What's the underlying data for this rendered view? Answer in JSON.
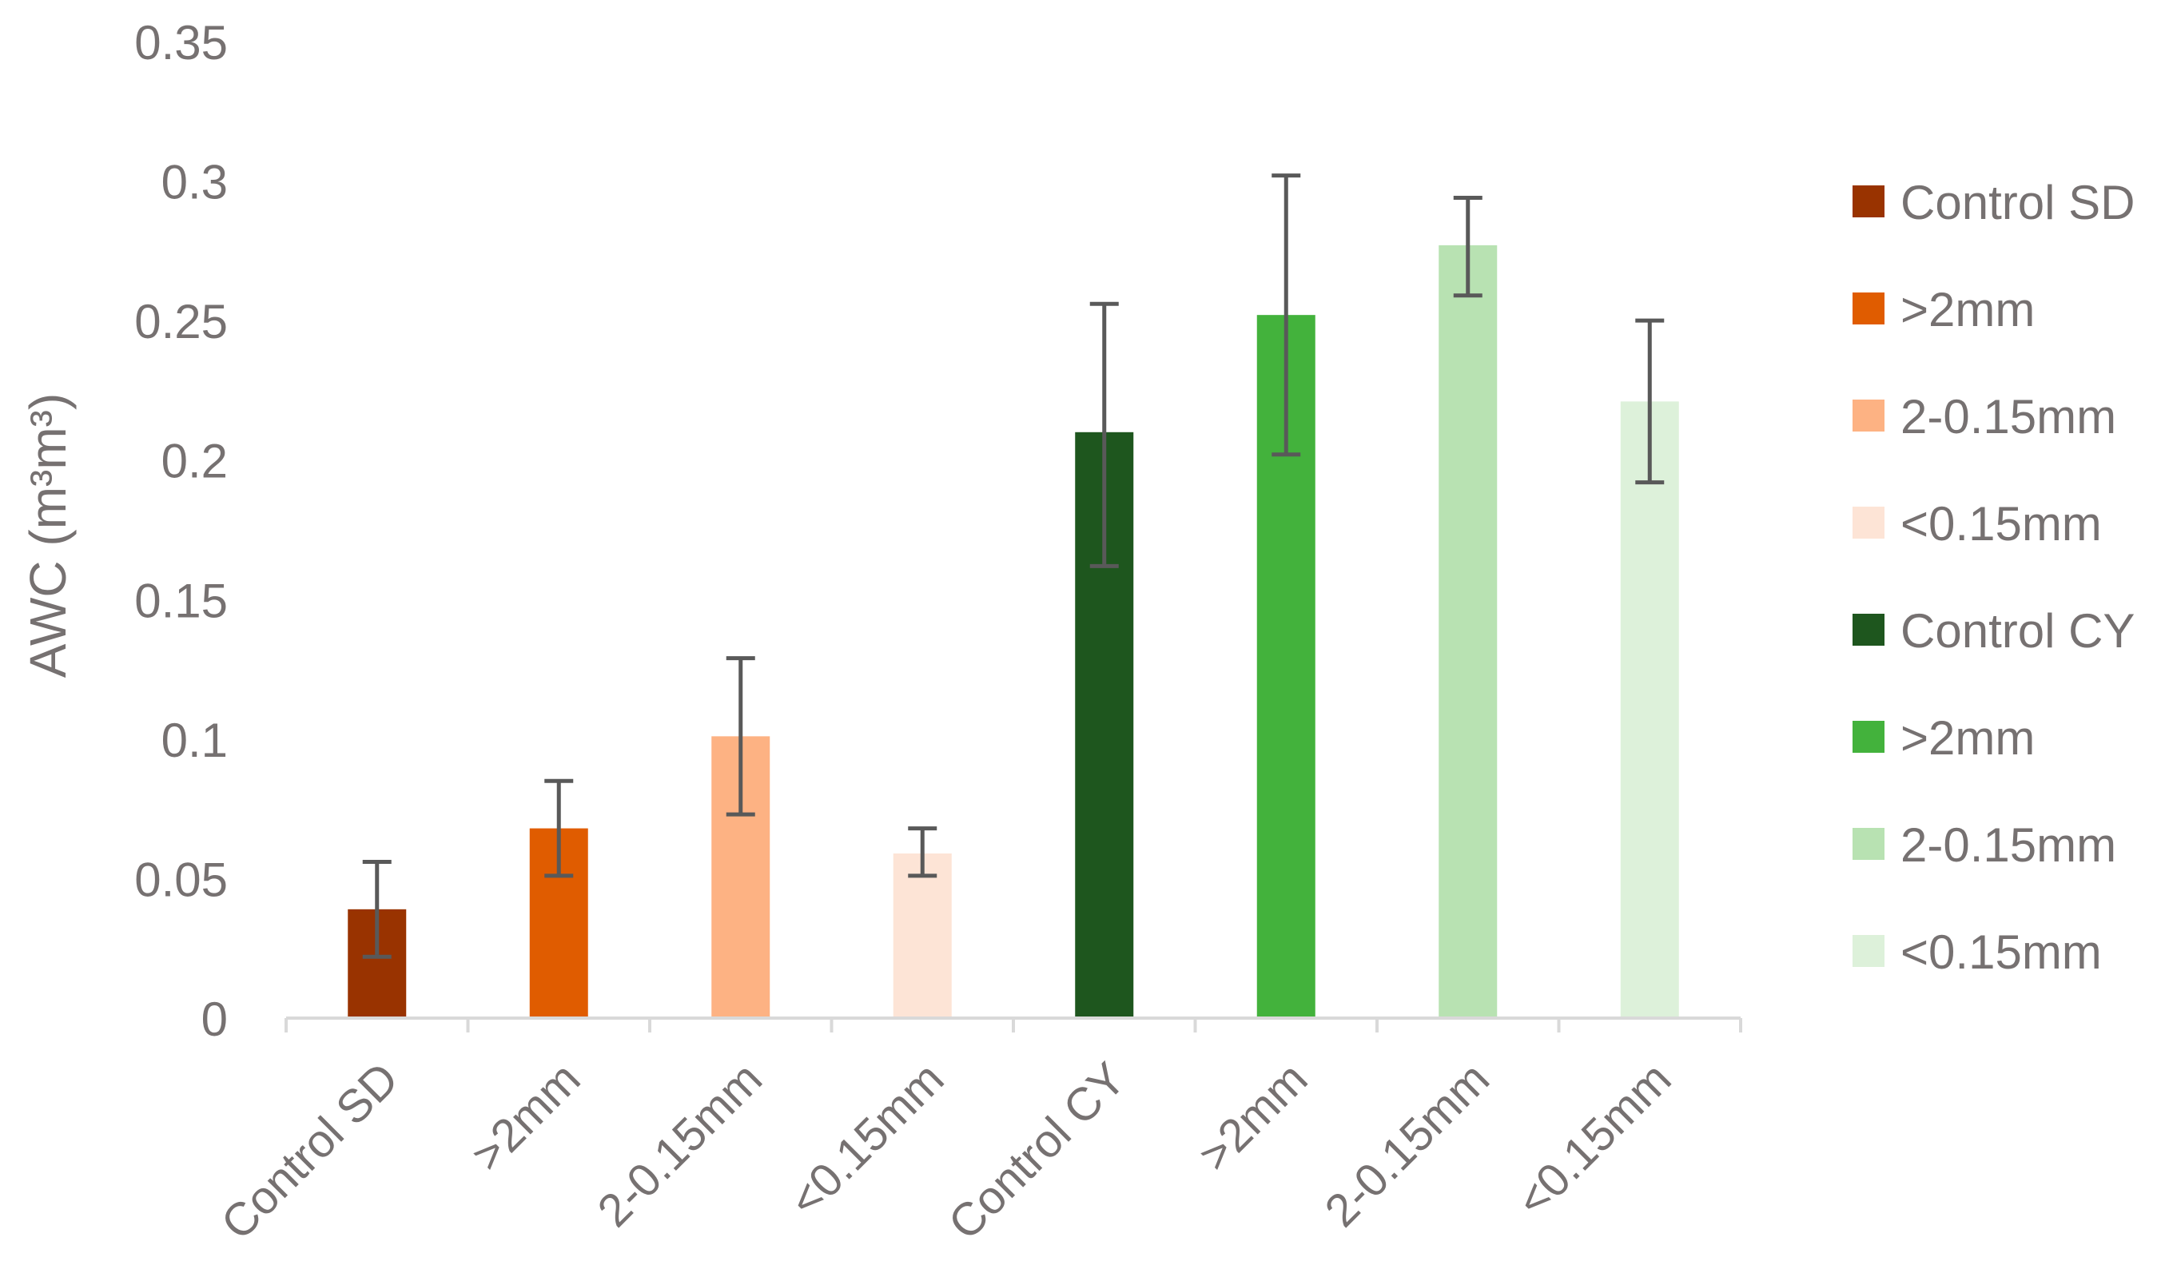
{
  "chart_data": {
    "type": "bar",
    "title": "",
    "xlabel": "",
    "ylabel": "AWC (m³m³)",
    "ylim": [
      0,
      0.35
    ],
    "yticks": [
      "0",
      "0.05",
      "0.1",
      "0.15",
      "0.2",
      "0.25",
      "0.3",
      "0.35"
    ],
    "grid": false,
    "legend_position": "right",
    "categories": [
      "Control SD",
      ">2mm",
      "2-0.15mm",
      "<0.15mm",
      "Control CY",
      ">2mm",
      "2-0.15mm",
      "<0.15mm"
    ],
    "series": [
      {
        "name": "Control SD",
        "color": "#993300",
        "value": 0.039,
        "err_low": 0.022,
        "err_high": 0.056
      },
      {
        "name": ">2mm",
        "color": "#e05c00",
        "value": 0.068,
        "err_low": 0.051,
        "err_high": 0.085
      },
      {
        "name": "2-0.15mm",
        "color": "#fdb283",
        "value": 0.101,
        "err_low": 0.073,
        "err_high": 0.129
      },
      {
        "name": "<0.15mm",
        "color": "#fde4d6",
        "value": 0.059,
        "err_low": 0.051,
        "err_high": 0.068
      },
      {
        "name": "Control CY",
        "color": "#1e561e",
        "value": 0.21,
        "err_low": 0.162,
        "err_high": 0.256
      },
      {
        "name": ">2mm",
        "color": "#43b23c",
        "value": 0.252,
        "err_low": 0.202,
        "err_high": 0.302
      },
      {
        "name": "2-0.15mm",
        "color": "#b8e2b2",
        "value": 0.277,
        "err_low": 0.259,
        "err_high": 0.294
      },
      {
        "name": "<0.15mm",
        "color": "#ddf1da",
        "value": 0.221,
        "err_low": 0.192,
        "err_high": 0.25
      }
    ]
  }
}
